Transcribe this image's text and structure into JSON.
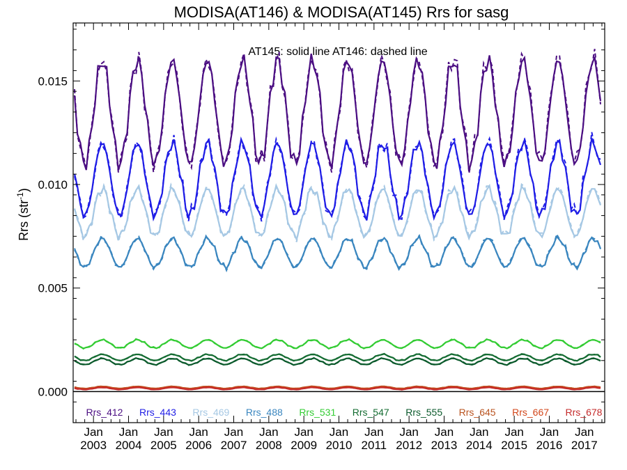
{
  "chart_data": {
    "type": "line",
    "title": "MODISA(AT146) & MODISA(AT145)  Rrs for sasg",
    "annotation": "AT145: solid line   AT146: dashed line",
    "ylabel_main": "Rrs (str",
    "ylabel_sup": "-1",
    "ylabel_close": ")",
    "ylim": [
      -0.0015,
      0.0178
    ],
    "xlim": [
      2002.42,
      2017.58
    ],
    "yticks": [
      {
        "value": 0.0,
        "label": "0.000"
      },
      {
        "value": 0.005,
        "label": "0.005"
      },
      {
        "value": 0.01,
        "label": "0.010"
      },
      {
        "value": 0.015,
        "label": "0.015"
      }
    ],
    "xticks": [
      {
        "value": 2003,
        "month": "Jan",
        "year": "2003"
      },
      {
        "value": 2004,
        "month": "Jan",
        "year": "2004"
      },
      {
        "value": 2005,
        "month": "Jan",
        "year": "2005"
      },
      {
        "value": 2006,
        "month": "Jan",
        "year": "2006"
      },
      {
        "value": 2007,
        "month": "Jan",
        "year": "2007"
      },
      {
        "value": 2008,
        "month": "Jan",
        "year": "2008"
      },
      {
        "value": 2009,
        "month": "Jan",
        "year": "2009"
      },
      {
        "value": 2010,
        "month": "Jan",
        "year": "2010"
      },
      {
        "value": 2011,
        "month": "Jan",
        "year": "2011"
      },
      {
        "value": 2012,
        "month": "Jan",
        "year": "2012"
      },
      {
        "value": 2013,
        "month": "Jan",
        "year": "2013"
      },
      {
        "value": 2014,
        "month": "Jan",
        "year": "2014"
      },
      {
        "value": 2015,
        "month": "Jan",
        "year": "2015"
      },
      {
        "value": 2016,
        "month": "Jan",
        "year": "2016"
      },
      {
        "value": 2017,
        "month": "Jan",
        "year": "2017"
      }
    ],
    "zero_line": 0.0,
    "series": [
      {
        "name": "Rrs_412",
        "color": "#4b0e82",
        "min": 0.011,
        "max": 0.016,
        "phase": 0.25
      },
      {
        "name": "Rrs_443",
        "color": "#1f1de6",
        "min": 0.0085,
        "max": 0.012,
        "phase": 0.25
      },
      {
        "name": "Rrs_469",
        "color": "#a6c8e4",
        "min": 0.0075,
        "max": 0.0098,
        "phase": 0.25
      },
      {
        "name": "Rrs_488",
        "color": "#3a86bf",
        "min": 0.006,
        "max": 0.0074,
        "phase": 0.25
      },
      {
        "name": "Rrs_531",
        "color": "#33cc33",
        "min": 0.0021,
        "max": 0.0025,
        "phase": 0.25
      },
      {
        "name": "Rrs_547",
        "color": "#146c32",
        "min": 0.0015,
        "max": 0.0018,
        "phase": 0.25
      },
      {
        "name": "Rrs_555",
        "color": "#0b5a2c",
        "min": 0.0013,
        "max": 0.0016,
        "phase": 0.25
      },
      {
        "name": "Rrs_645",
        "color": "#b9531f",
        "min": 0.00015,
        "max": 0.00025,
        "phase": 0.25
      },
      {
        "name": "Rrs_667",
        "color": "#d2461a",
        "min": 0.00012,
        "max": 0.00022,
        "phase": 0.25
      },
      {
        "name": "Rrs_678",
        "color": "#c42a2a",
        "min": 0.0001,
        "max": 0.0002,
        "phase": 0.25
      }
    ]
  }
}
